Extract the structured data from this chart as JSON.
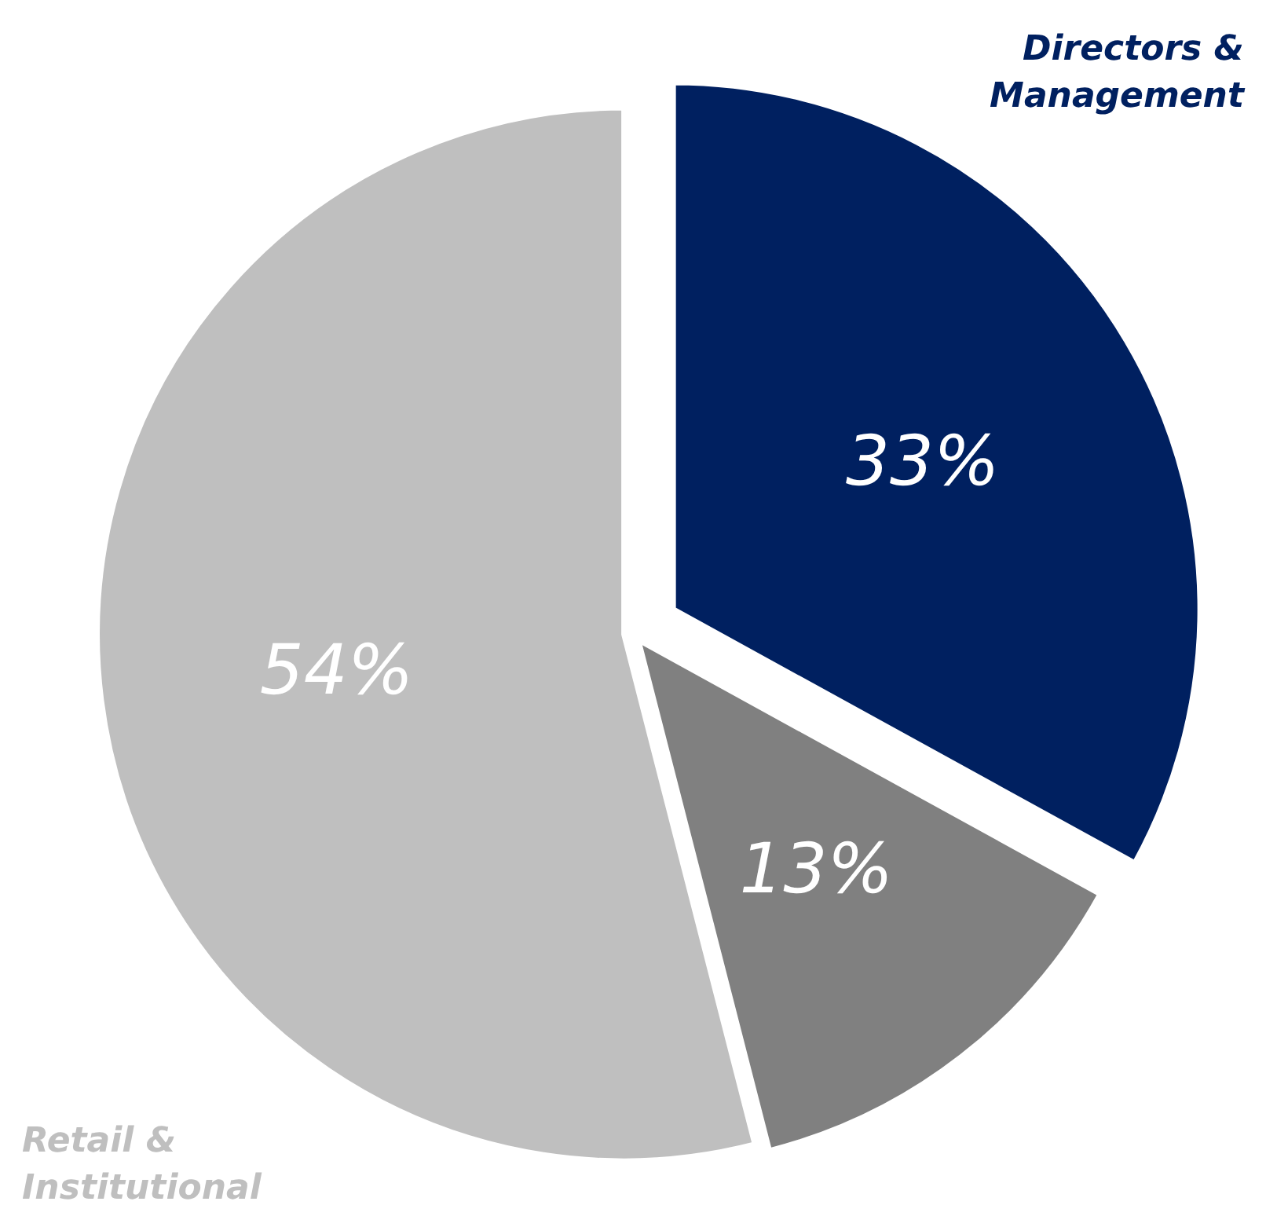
{
  "chart_data": {
    "type": "pie",
    "categories": [
      "Directors & Management",
      null,
      "Retail & Institutional"
    ],
    "values": [
      33,
      13,
      54
    ],
    "value_labels": [
      "33%",
      "13%",
      "54%"
    ],
    "colors": [
      "#002060",
      "#808080",
      "#bfbfbf"
    ]
  }
}
